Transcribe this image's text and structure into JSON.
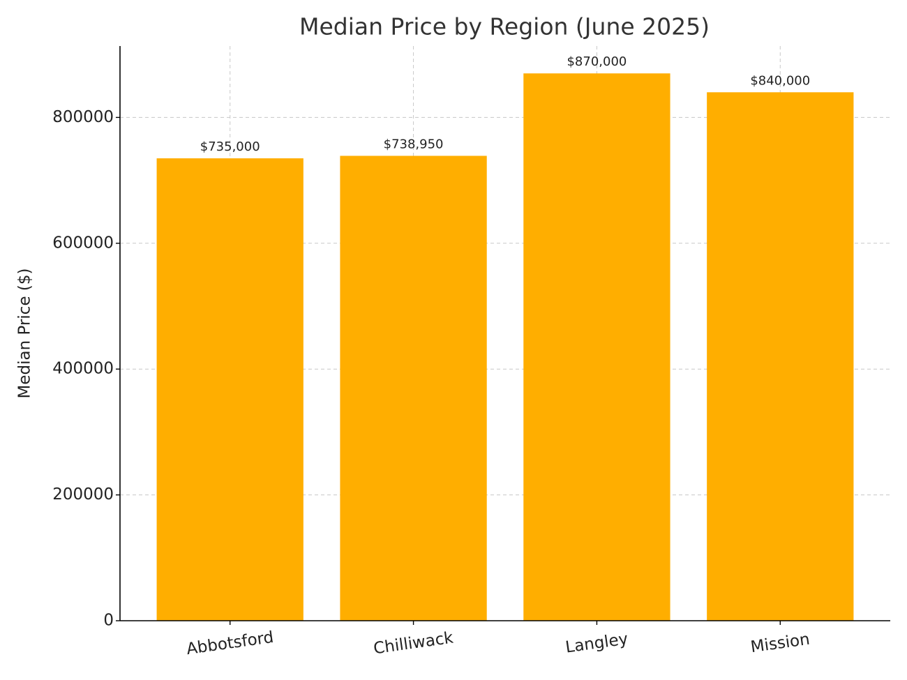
{
  "chart_data": {
    "type": "bar",
    "title": "Median Price by Region (June 2025)",
    "y_label": "Median Price ($)",
    "categories": [
      "Abbotsford",
      "Chilliwack",
      "Langley",
      "Mission"
    ],
    "values": [
      735000,
      738950,
      870000,
      840000
    ],
    "value_labels": [
      "$735,000",
      "$738,950",
      "$870,000",
      "$840,000"
    ],
    "color": "#ffae00",
    "ylim": [
      0,
      913500
    ],
    "yticks": [
      0,
      200000,
      400000,
      600000,
      800000
    ],
    "grid": true
  }
}
